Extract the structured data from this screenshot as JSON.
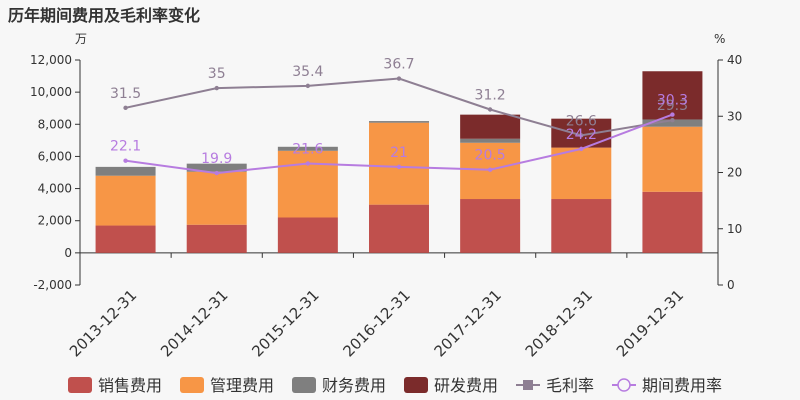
{
  "chart_data": {
    "type": "bar",
    "title": "历年期间费用及毛利率变化",
    "y_left_unit": "万",
    "y_right_unit": "%",
    "y_left_range": [
      -2000,
      12000
    ],
    "y_left_ticks": [
      "-2,000",
      "0",
      "2,000",
      "4,000",
      "6,000",
      "8,000",
      "10,000",
      "12,000"
    ],
    "y_left_tick_values": [
      -2000,
      0,
      2000,
      4000,
      6000,
      8000,
      10000,
      12000
    ],
    "y_right_range": [
      0,
      40
    ],
    "y_right_ticks": [
      "0",
      "10",
      "20",
      "30",
      "40"
    ],
    "y_right_tick_values": [
      0,
      10,
      20,
      30,
      40
    ],
    "categories": [
      "2013-12-31",
      "2014-12-31",
      "2015-12-31",
      "2016-12-31",
      "2017-12-31",
      "2018-12-31",
      "2019-12-31"
    ],
    "series": [
      {
        "name": "销售费用",
        "type": "bar",
        "color": "#c0504d",
        "values": [
          1700,
          1750,
          2200,
          3000,
          3350,
          3350,
          3800
        ]
      },
      {
        "name": "管理费用",
        "type": "bar",
        "color": "#f79646",
        "values": [
          3100,
          3300,
          4150,
          5100,
          3500,
          3200,
          4050
        ]
      },
      {
        "name": "财务费用",
        "type": "bar",
        "color": "#7f7f7f",
        "values": [
          550,
          500,
          250,
          100,
          250,
          -50,
          450
        ]
      },
      {
        "name": "研发费用",
        "type": "bar",
        "color": "#7b2b2b",
        "values": [
          0,
          0,
          0,
          0,
          1500,
          1800,
          3000
        ]
      },
      {
        "name": "毛利率",
        "type": "line",
        "axis": "right",
        "color": "#8e7f93",
        "marker": "square",
        "values": [
          31.5,
          35,
          35.4,
          36.7,
          31.2,
          26.6,
          29.3
        ]
      },
      {
        "name": "期间费用率",
        "type": "line",
        "axis": "right",
        "color": "#b77ce0",
        "marker": "circle",
        "values": [
          22.1,
          19.9,
          21.6,
          21,
          20.5,
          24.2,
          30.3
        ]
      }
    ],
    "data_labels": {
      "毛利率": [
        "31.5",
        "35",
        "35.4",
        "36.7",
        "31.2",
        "26.6",
        "29.3"
      ],
      "期间费用率": [
        "22.1",
        "19.9",
        "21.6",
        "21",
        "20.5",
        "24.2",
        "30.3"
      ]
    },
    "legend_position": "bottom",
    "grid": false
  }
}
